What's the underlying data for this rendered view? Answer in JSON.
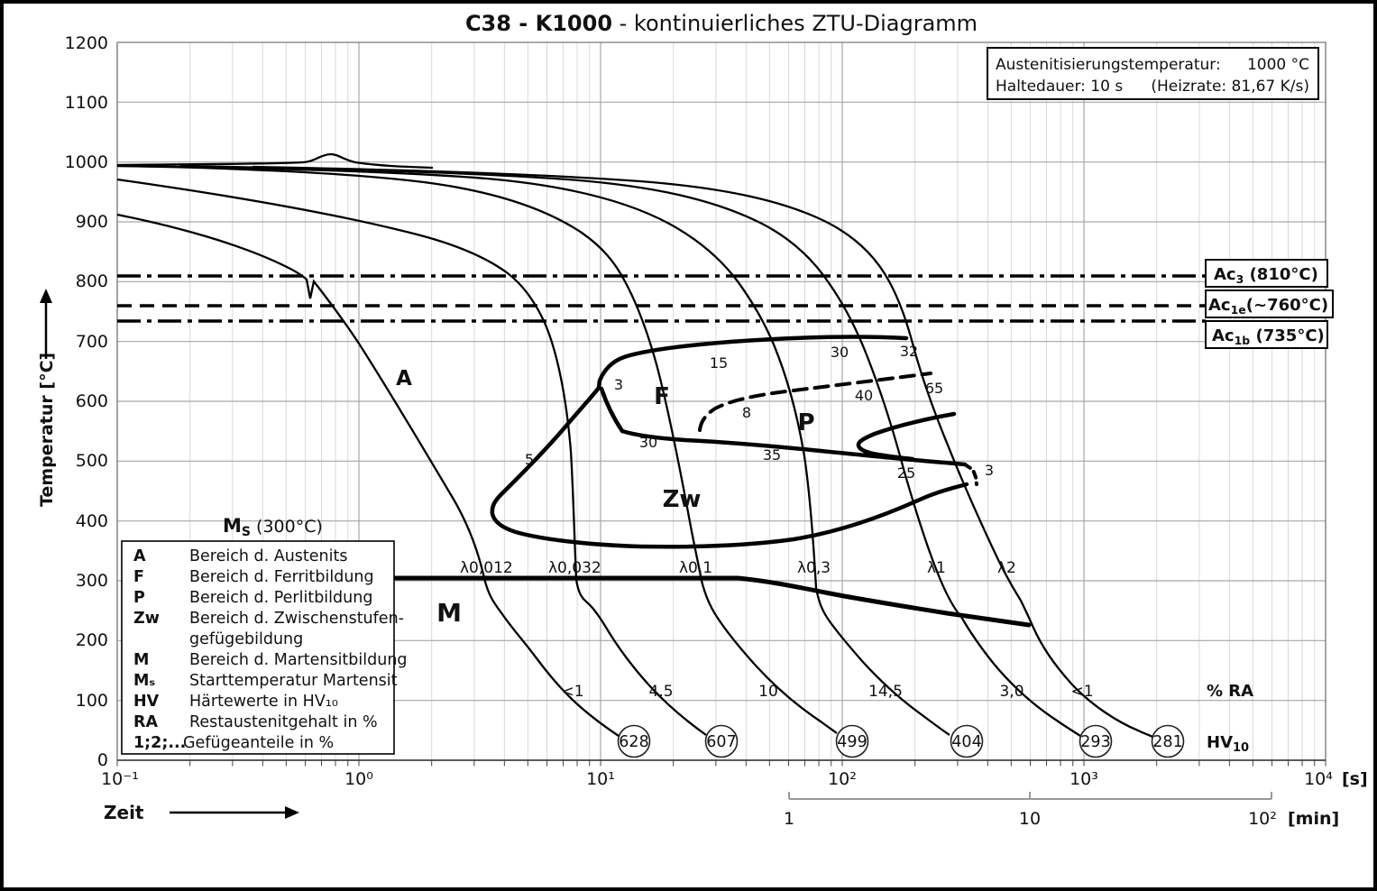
{
  "title": {
    "bold": "C38 - K1000",
    "rest": " - kontinuierliches ZTU-Diagramm"
  },
  "info_box": {
    "line1_label": "Austenitisierungstemperatur:",
    "line1_value": "1000 °C",
    "line2_label": "Haltedauer: 10 s",
    "line2_value": "(Heizrate: 81,67 K/s)"
  },
  "axes": {
    "y_label": "Temperatur [°C]",
    "zeit_label": "Zeit",
    "seconds_unit": "[s]",
    "minutes_unit": "[min]",
    "y_ticks": [
      "1200",
      "1100",
      "1000",
      "900",
      "800",
      "700",
      "600",
      "500",
      "400",
      "300",
      "200",
      "100",
      "0"
    ],
    "x_ticks_s": [
      "10⁻¹",
      "10⁰",
      "10¹",
      "10²",
      "10³",
      "10⁴"
    ],
    "x_ticks_min": [
      "1",
      "10",
      "10²"
    ]
  },
  "reference_lines": {
    "ac3": {
      "main": "Ac",
      "sub": "3",
      "rest": " (810°C)"
    },
    "ac1e": {
      "main": "Ac",
      "sub": "1e",
      "rest": "(~760°C)"
    },
    "ac1b": {
      "main": "Ac",
      "sub": "1b",
      "rest": " (735°C)"
    }
  },
  "ms_label": {
    "main": "M",
    "sub": "S",
    "rest": " (300°C)"
  },
  "regions": {
    "a": "A",
    "f": "F",
    "p": "P",
    "zw": "Zw",
    "m": "M"
  },
  "legend": {
    "rows": [
      {
        "key": "A",
        "text": "Bereich d. Austenits"
      },
      {
        "key": "F",
        "text": "Bereich d. Ferritbildung"
      },
      {
        "key": "P",
        "text": "Bereich d. Perlitbildung"
      },
      {
        "key": "Zw",
        "text": "Bereich d. Zwischenstufen-"
      },
      {
        "key": "",
        "text": "gefügebildung"
      },
      {
        "key": "M",
        "text": "Bereich d. Martensitbildung"
      },
      {
        "key": "Mₛ",
        "text": "Starttemperatur Martensit"
      },
      {
        "key": "HV",
        "text": "Härtewerte in HV₁₀"
      },
      {
        "key": "RA",
        "text": "Restaustenitgehalt in %"
      },
      {
        "key": "1;2;...",
        "text": "Gefügeanteile in %"
      }
    ]
  },
  "curves": [
    {
      "lambda": "λ0,012",
      "ra": "<1",
      "hv": "628"
    },
    {
      "lambda": "λ0,032",
      "ra": "4,5",
      "hv": "607"
    },
    {
      "lambda": "λ0,1",
      "ra": "10",
      "hv": "499"
    },
    {
      "lambda": "λ0,3",
      "ra": "14,5",
      "hv": "404"
    },
    {
      "lambda": "λ1",
      "ra": "3,0",
      "hv": "293"
    },
    {
      "lambda": "λ2",
      "ra": "<1",
      "hv": "281"
    }
  ],
  "ra_header": "% RA",
  "hv_header": {
    "main": "HV",
    "sub": "10"
  },
  "fractions": [
    "3",
    "15",
    "30",
    "32",
    "65",
    "40",
    "8",
    "30",
    "35",
    "25",
    "3",
    "5"
  ],
  "chart_data": {
    "type": "line",
    "title": "C38 - K1000 - kontinuierliches ZTU-Diagramm",
    "xlabel": "Zeit [s]",
    "ylabel": "Temperatur [°C]",
    "x_scale": "log",
    "xlim": [
      0.1,
      10000
    ],
    "ylim": [
      0,
      1200
    ],
    "grid": true,
    "austenitization": {
      "temperature_c": 1000,
      "hold_time_s": 10,
      "heat_rate_k_per_s": 81.67
    },
    "reference_temperatures_c": {
      "Ac3": 810,
      "Ac1e": 760,
      "Ac1b": 735,
      "Ms": 300
    },
    "cooling_curves": [
      {
        "lambda": "0,012",
        "hv10": 628,
        "restaustenit_pct": "<1"
      },
      {
        "lambda": "0,032",
        "hv10": 607,
        "restaustenit_pct": "4,5"
      },
      {
        "lambda": "0,1",
        "hv10": 499,
        "restaustenit_pct": "10"
      },
      {
        "lambda": "0,3",
        "hv10": 404,
        "restaustenit_pct": "14,5"
      },
      {
        "lambda": "1",
        "hv10": 293,
        "restaustenit_pct": "3,0"
      },
      {
        "lambda": "2",
        "hv10": 281,
        "restaustenit_pct": "<1"
      }
    ],
    "regions": [
      "A",
      "F",
      "P",
      "Zw",
      "M"
    ],
    "phase_fraction_labels_pct": [
      3,
      15,
      30,
      32,
      65,
      40,
      8,
      30,
      35,
      25,
      3,
      5
    ],
    "secondary_x_axis": {
      "unit": "min",
      "ticks": [
        1,
        10,
        100
      ]
    }
  }
}
